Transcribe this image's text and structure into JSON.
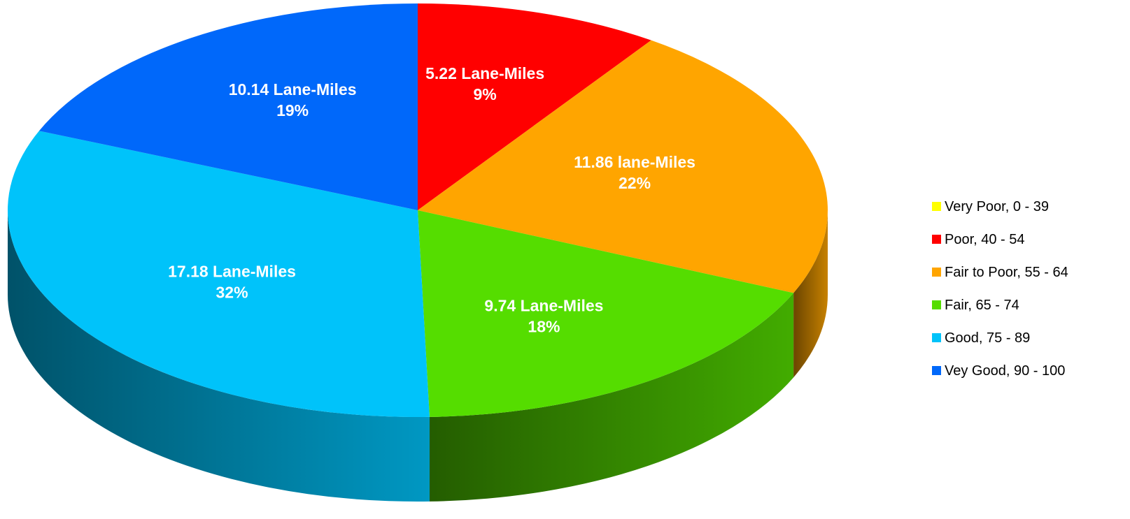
{
  "chart_data": {
    "type": "pie",
    "style": "3d",
    "legend_position": "right",
    "categories": [
      "Very Poor, 0 - 39",
      "Poor, 40 - 54",
      "Fair to Poor, 55 - 64",
      "Fair, 65 - 74",
      "Good, 75 - 89",
      "Vey Good, 90 - 100"
    ],
    "values": [
      0,
      5.22,
      11.86,
      9.74,
      17.18,
      10.14
    ],
    "percents": [
      0,
      9,
      22,
      18,
      32,
      19
    ],
    "colors": [
      "#FFFF00",
      "#FF0000",
      "#FFA500",
      "#55DD00",
      "#00C3FA",
      "#0068FA"
    ],
    "labels": [
      null,
      {
        "line1": "5.22 Lane-Miles",
        "line2": "9%"
      },
      {
        "line1": "11.86 lane-Miles",
        "line2": "22%"
      },
      {
        "line1": "9.74 Lane-Miles",
        "line2": "18%"
      },
      {
        "line1": "17.18 Lane-Miles",
        "line2": "32%"
      },
      {
        "line1": "10.14 Lane-Miles",
        "line2": "19%"
      }
    ]
  }
}
